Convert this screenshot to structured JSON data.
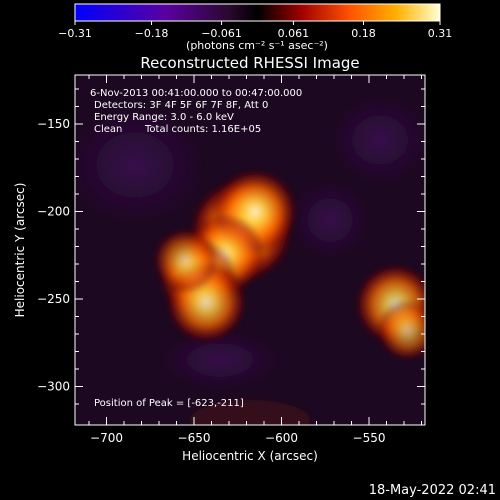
{
  "chart_data": {
    "type": "heatmap",
    "title": "Reconstructed RHESSI Image",
    "xlabel": "Heliocentric X (arcsec)",
    "ylabel": "Heliocentric Y (arcsec)",
    "xlim": [
      -718,
      -518
    ],
    "ylim": [
      -322,
      -122
    ],
    "x_ticks": [
      -700,
      -650,
      -600,
      -550
    ],
    "y_ticks": [
      -150,
      -200,
      -250,
      -300
    ],
    "colorbar": {
      "range": [
        -0.31,
        0.31
      ],
      "ticks": [
        -0.31,
        -0.18,
        -0.061,
        0.061,
        0.18,
        0.31
      ],
      "tick_labels": [
        "-0.31",
        "-0.18",
        "-0.061",
        "0.061",
        "0.18",
        "0.31"
      ],
      "unit_label": "(photons cm⁻² s⁻¹ asec⁻²)",
      "colormap": [
        "#0000ff",
        "#4b0082",
        "#2a0a2a",
        "#000000",
        "#8b0000",
        "#ff4500",
        "#ffa500",
        "#ffffcc"
      ]
    },
    "annotations": {
      "time_range": "6-Nov-2013 00:41:00.000 to 00:47:00.000",
      "detectors": "Detectors: 3F 4F 5F 6F 7F 8F, Att 0",
      "energy_range": "Energy Range: 3.0 - 6.0 keV",
      "clean_label": "Clean",
      "total_counts": "Total counts: 1.16E+05",
      "peak_position": "Position of Peak = [-623,-211]"
    },
    "sources": [
      {
        "x": -623,
        "y": -211,
        "intensity": 0.31
      },
      {
        "x": -615,
        "y": -200,
        "intensity": 0.22
      },
      {
        "x": -633,
        "y": -225,
        "intensity": 0.2
      },
      {
        "x": -648,
        "y": -238,
        "intensity": 0.18
      },
      {
        "x": -643,
        "y": -252,
        "intensity": 0.2
      },
      {
        "x": -655,
        "y": -228,
        "intensity": 0.12
      },
      {
        "x": -535,
        "y": -253,
        "intensity": 0.2
      },
      {
        "x": -528,
        "y": -268,
        "intensity": 0.1
      }
    ],
    "footer_date": "18-May-2022 02:41"
  }
}
